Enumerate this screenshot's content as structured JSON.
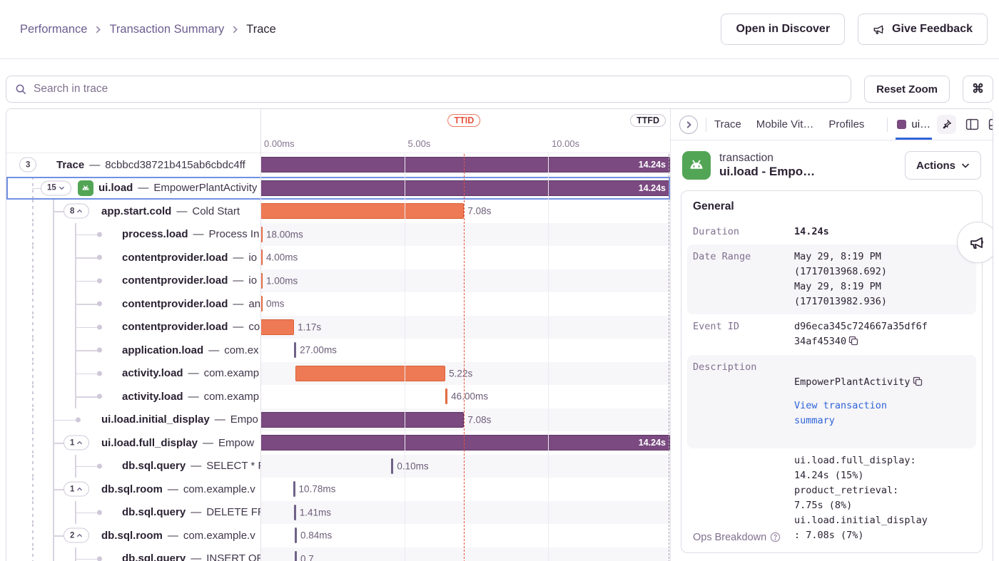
{
  "breadcrumb": {
    "items": [
      "Performance",
      "Transaction Summary",
      "Trace"
    ]
  },
  "header": {
    "open_in_discover": "Open in Discover",
    "give_feedback": "Give Feedback"
  },
  "toolbar": {
    "search_placeholder": "Search in trace",
    "reset_zoom": "Reset Zoom",
    "shortcut": "⌘"
  },
  "timeline": {
    "total_s": 14.24,
    "ticks": [
      {
        "label": "0.00ms",
        "t": 0
      },
      {
        "label": "5.00s",
        "t": 5
      },
      {
        "label": "10.00s",
        "t": 10
      }
    ],
    "ttid": {
      "label": "TTID",
      "t": 7.08
    },
    "ttfd": {
      "label": "TTFD",
      "t": 14.18
    }
  },
  "trace": {
    "separator": "—",
    "rows": [
      {
        "depth": 0,
        "kind": "pill",
        "count": "3",
        "chevron": null,
        "icon": null,
        "op": "Trace",
        "desc": "8cbbcd38721b415ab6cbdc4ff",
        "selected": false,
        "span": {
          "start_s": 0,
          "dur_s": 14.24,
          "color": "purple",
          "label": "14.24s",
          "inside": true
        }
      },
      {
        "depth": 1,
        "kind": "pill",
        "count": "15",
        "chevron": "down",
        "icon": "android",
        "op": "ui.load",
        "desc": "EmpowerPlantActivity",
        "selected": true,
        "span": {
          "start_s": 0,
          "dur_s": 14.24,
          "color": "purple",
          "label": "14.24s",
          "inside": true
        }
      },
      {
        "depth": 2,
        "kind": "pill",
        "count": "8",
        "chevron": "up",
        "icon": null,
        "op": "app.start.cold",
        "desc": "Cold Start",
        "selected": false,
        "span": {
          "start_s": 0,
          "dur_s": 7.08,
          "color": "orange",
          "label": "7.08s",
          "inside": false
        }
      },
      {
        "depth": 3,
        "kind": "dot",
        "count": null,
        "chevron": null,
        "icon": null,
        "op": "process.load",
        "desc": "Process In",
        "selected": false,
        "span": {
          "start_s": 0,
          "dur_s": 0.018,
          "color": "orange",
          "label": "18.00ms",
          "inside": false
        }
      },
      {
        "depth": 3,
        "kind": "dot",
        "count": null,
        "chevron": null,
        "icon": null,
        "op": "contentprovider.load",
        "desc": "io",
        "selected": false,
        "span": {
          "start_s": 0,
          "dur_s": 0.004,
          "color": "orange",
          "label": "4.00ms",
          "inside": false
        }
      },
      {
        "depth": 3,
        "kind": "dot",
        "count": null,
        "chevron": null,
        "icon": null,
        "op": "contentprovider.load",
        "desc": "io",
        "selected": false,
        "span": {
          "start_s": 0,
          "dur_s": 0.001,
          "color": "orange",
          "label": "1.00ms",
          "inside": false
        }
      },
      {
        "depth": 3,
        "kind": "dot",
        "count": null,
        "chevron": null,
        "icon": null,
        "op": "contentprovider.load",
        "desc": "an",
        "selected": false,
        "span": {
          "start_s": 0,
          "dur_s": 0,
          "color": "orange",
          "label": "0ms",
          "inside": false
        }
      },
      {
        "depth": 3,
        "kind": "dot",
        "count": null,
        "chevron": null,
        "icon": null,
        "op": "contentprovider.load",
        "desc": "co",
        "selected": false,
        "span": {
          "start_s": 0,
          "dur_s": 1.17,
          "color": "orange",
          "label": "1.17s",
          "inside": false
        }
      },
      {
        "depth": 3,
        "kind": "dot",
        "count": null,
        "chevron": null,
        "icon": null,
        "op": "application.load",
        "desc": "com.ex",
        "selected": false,
        "span": {
          "start_s": 1.17,
          "dur_s": 0.027,
          "color": "muted",
          "label": "27.00ms",
          "inside": false
        }
      },
      {
        "depth": 3,
        "kind": "dot",
        "count": null,
        "chevron": null,
        "icon": null,
        "op": "activity.load",
        "desc": "com.examp",
        "selected": false,
        "span": {
          "start_s": 1.21,
          "dur_s": 5.22,
          "color": "orange",
          "label": "5.22s",
          "inside": false
        }
      },
      {
        "depth": 3,
        "kind": "dot",
        "count": null,
        "chevron": null,
        "icon": null,
        "op": "activity.load",
        "desc": "com.examp",
        "selected": false,
        "span": {
          "start_s": 6.43,
          "dur_s": 0.046,
          "color": "orange",
          "label": "46.00ms",
          "inside": false
        }
      },
      {
        "depth": 2,
        "kind": "dot",
        "count": null,
        "chevron": null,
        "icon": null,
        "op": "ui.load.initial_display",
        "desc": "Empo",
        "selected": false,
        "span": {
          "start_s": 0,
          "dur_s": 7.08,
          "color": "purple",
          "label": "7.08s",
          "inside": false
        }
      },
      {
        "depth": 2,
        "kind": "pill",
        "count": "1",
        "chevron": "up",
        "icon": null,
        "op": "ui.load.full_display",
        "desc": "Empow",
        "selected": false,
        "span": {
          "start_s": 0,
          "dur_s": 14.24,
          "color": "purple",
          "label": "14.24s",
          "inside": true
        }
      },
      {
        "depth": 3,
        "kind": "dot",
        "count": null,
        "chevron": null,
        "icon": null,
        "op": "db.sql.query",
        "desc": "SELECT * F",
        "selected": false,
        "span": {
          "start_s": 4.55,
          "dur_s": 0.0001,
          "color": "muted",
          "label": "0.10ms",
          "inside": false
        }
      },
      {
        "depth": 2,
        "kind": "pill",
        "count": "1",
        "chevron": "up",
        "icon": null,
        "op": "db.sql.room",
        "desc": "com.example.v",
        "selected": false,
        "span": {
          "start_s": 1.13,
          "dur_s": 0.01078,
          "color": "muted",
          "label": "10.78ms",
          "inside": false
        }
      },
      {
        "depth": 3,
        "kind": "dot",
        "count": null,
        "chevron": null,
        "icon": null,
        "op": "db.sql.query",
        "desc": "DELETE FR",
        "selected": false,
        "span": {
          "start_s": 1.16,
          "dur_s": 0.00141,
          "color": "muted",
          "label": "1.41ms",
          "inside": false
        }
      },
      {
        "depth": 2,
        "kind": "pill",
        "count": "2",
        "chevron": "up",
        "icon": null,
        "op": "db.sql.room",
        "desc": "com.example.v",
        "selected": false,
        "span": {
          "start_s": 1.19,
          "dur_s": 0.00084,
          "color": "muted",
          "label": "0.84ms",
          "inside": false
        }
      },
      {
        "depth": 3,
        "kind": "dot",
        "count": null,
        "chevron": null,
        "icon": null,
        "op": "db.sql.query",
        "desc": "INSERT OR",
        "selected": false,
        "span": {
          "start_s": 1.19,
          "dur_s": 0.0007,
          "color": "muted",
          "label": "0.7",
          "inside": false
        }
      }
    ]
  },
  "details": {
    "tabs": [
      "Trace",
      "Mobile Vit…",
      "Profiles"
    ],
    "active_tab": "ui…",
    "transaction_type": "transaction",
    "transaction_name": "ui.load - Empo…",
    "actions_label": "Actions",
    "general": {
      "title": "General",
      "duration_label": "Duration",
      "duration": "14.24s",
      "date_range_label": "Date Range",
      "date_range": "May 29, 8:19 PM\n(1717013968.692)\nMay 29, 8:19 PM\n(1717013982.936)",
      "event_id_label": "Event ID",
      "event_id": "d96eca345c724667a35df6f34af45340",
      "description_label": "Description",
      "description": "EmpowerPlantActivity",
      "view_link": "View transaction summary",
      "ops_label": "Ops Breakdown",
      "ops": "ui.load.full_display: 14.24s (15%)\nproduct_retrieval: 7.75s (8%)\nui.load.initial_display: 7.08s (7%)"
    }
  }
}
